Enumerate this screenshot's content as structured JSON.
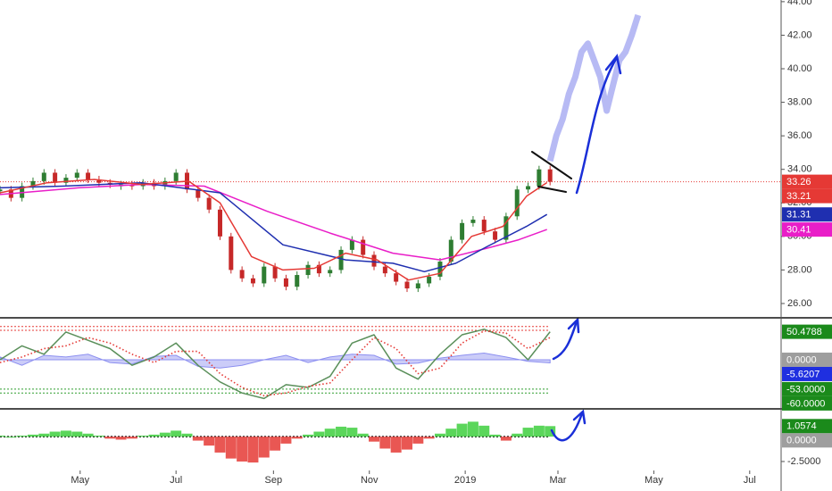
{
  "chart_data": [
    {
      "type": "line",
      "xlim": [
        10,
        507
      ],
      "ylim": [
        25.2,
        44.1
      ],
      "yticks": [
        {
          "value": 26,
          "label": "26.00"
        },
        {
          "value": 28,
          "label": "28.00"
        },
        {
          "value": 30,
          "label": "30.00"
        },
        {
          "value": 32,
          "label": "32.00"
        },
        {
          "value": 34,
          "label": "34.00"
        },
        {
          "value": 36,
          "label": "36.00"
        },
        {
          "value": 38,
          "label": "38.00"
        },
        {
          "value": 40,
          "label": "40.00"
        },
        {
          "value": 42,
          "label": "42.00"
        },
        {
          "value": 44,
          "label": "44.00"
        }
      ],
      "x": [
        10,
        17,
        24,
        31,
        38,
        45,
        52,
        59,
        66,
        73,
        80,
        87,
        94,
        101,
        108,
        115,
        122,
        129,
        136,
        143,
        150,
        157,
        164,
        171,
        178,
        185,
        192,
        199,
        206,
        213,
        220,
        227,
        234,
        241,
        248,
        255,
        262,
        269,
        276,
        283,
        290,
        297,
        304,
        311,
        318,
        325,
        332,
        339,
        346,
        353,
        360
      ],
      "up_color": "#2e7d32",
      "down_color": "#c62828",
      "price_line": 33.26,
      "price_line_color": "#e53935",
      "series": [
        {
          "style": "candles",
          "values": [
            32.8,
            32.3,
            33,
            33.3,
            33.8,
            33.2,
            33.5,
            33.8,
            33.4,
            33.2,
            33.1,
            33.1,
            33.0,
            33.2,
            33.0,
            33.3,
            33.8,
            32.8,
            32.3,
            31.6,
            30.0,
            28.0,
            27.5,
            27.2,
            28.2,
            27.5,
            27.0,
            27.7,
            28.3,
            27.8,
            28.0,
            29.2,
            29.8,
            28.9,
            28.2,
            27.8,
            27.3,
            26.9,
            27.2,
            27.6,
            28.5,
            29.8,
            30.8,
            31.0,
            30.3,
            29.8,
            31.2,
            32.8,
            33.0,
            34.0,
            33.26
          ]
        },
        {
          "style": "band",
          "color": "#9fa3f0",
          "x": [
            360,
            364,
            368,
            372,
            376,
            380,
            384,
            388,
            392,
            396,
            400,
            404,
            408,
            412,
            416
          ],
          "values": [
            34.5,
            36,
            37,
            38.5,
            39.5,
            41,
            41.5,
            40.5,
            39.5,
            37.5,
            39,
            40.5,
            41,
            42,
            43.2
          ]
        },
        {
          "style": "line",
          "color": "#e91ec8",
          "x": [
            10,
            60,
            100,
            140,
            180,
            220,
            260,
            290,
            320,
            340,
            358
          ],
          "values": [
            32.5,
            32.9,
            33.1,
            33.0,
            31.5,
            30.2,
            29.0,
            28.6,
            29.3,
            29.8,
            30.41
          ]
        },
        {
          "style": "line",
          "color": "#1f2fb0",
          "x": [
            10,
            50,
            100,
            150,
            190,
            230,
            260,
            280,
            300,
            320,
            345,
            358
          ],
          "values": [
            32.9,
            33.0,
            33.2,
            32.6,
            29.5,
            28.6,
            28.4,
            27.9,
            28.4,
            29.4,
            30.6,
            31.31
          ]
        },
        {
          "style": "line",
          "color": "#e53935",
          "x": [
            10,
            40,
            70,
            100,
            130,
            150,
            170,
            190,
            210,
            230,
            250,
            270,
            290,
            310,
            330,
            345,
            358
          ],
          "values": [
            32.6,
            33.2,
            33.4,
            33.1,
            33.3,
            32.0,
            28.8,
            28.0,
            28.1,
            29.0,
            28.6,
            27.4,
            27.8,
            30.0,
            30.6,
            32.4,
            33.21
          ]
        }
      ],
      "tags": [
        {
          "value": 33.26,
          "color": "#e53935"
        },
        {
          "value": 33.21,
          "color": "#e53935"
        },
        {
          "value": 31.31,
          "color": "#1f2fb0"
        },
        {
          "value": 30.41,
          "color": "#e91ec8"
        }
      ]
    },
    {
      "type": "line",
      "xlim": [
        10,
        507
      ],
      "ylim": [
        -87,
        74
      ],
      "x": [
        10,
        24,
        38,
        52,
        66,
        80,
        94,
        108,
        122,
        136,
        150,
        164,
        178,
        192,
        206,
        220,
        234,
        248,
        262,
        276,
        290,
        304,
        318,
        332,
        346,
        360
      ],
      "levels": [
        {
          "value": 60,
          "color": "#e53935"
        },
        {
          "value": 53,
          "color": "#e53935"
        },
        {
          "value": -53,
          "color": "#2e9e2e"
        },
        {
          "value": -60,
          "color": "#2e9e2e"
        }
      ],
      "series": [
        {
          "style": "area",
          "color": "#8c8ff0",
          "values": [
            5,
            -10,
            8,
            5,
            10,
            -5,
            -8,
            6,
            8,
            -12,
            -15,
            -10,
            0,
            8,
            -5,
            5,
            10,
            8,
            -8,
            -6,
            3,
            8,
            12,
            5,
            -3,
            -5.6207
          ]
        },
        {
          "style": "line",
          "color": "#5a8f5a",
          "values": [
            0,
            25,
            10,
            50,
            35,
            20,
            -10,
            5,
            30,
            -10,
            -40,
            -60,
            -70,
            -45,
            -50,
            -30,
            30,
            45,
            -15,
            -35,
            10,
            45,
            55,
            40,
            0,
            50.4788
          ]
        },
        {
          "style": "dotted",
          "color": "#e53935",
          "values": [
            -5,
            5,
            20,
            25,
            40,
            30,
            10,
            -5,
            15,
            15,
            -25,
            -50,
            -65,
            -60,
            -48,
            -42,
            0,
            40,
            20,
            -25,
            -15,
            30,
            52,
            48,
            20,
            40
          ]
        }
      ],
      "tags": [
        {
          "value": 50.4788,
          "color": "#1b8a1b"
        },
        {
          "value": 0,
          "label": "0.0000",
          "color": "#9e9e9e"
        },
        {
          "value": -5.6207,
          "color": "#1f2fe0"
        },
        {
          "value": -53,
          "label": "-53.0000",
          "color": "#1b8a1b"
        },
        {
          "value": -60,
          "label": "-60.0000",
          "color": "#1b8a1b"
        }
      ]
    },
    {
      "type": "bar",
      "xlim": [
        10,
        507
      ],
      "ylim": [
        -3.4,
        2.7
      ],
      "yticks": [
        {
          "value": -2.5,
          "label": "-2.5000"
        }
      ],
      "xticks": [
        {
          "value": 61,
          "label": "May"
        },
        {
          "value": 122,
          "label": "Jul"
        },
        {
          "value": 184,
          "label": "Sep"
        },
        {
          "value": 245,
          "label": "Nov"
        },
        {
          "value": 306,
          "label": "2019"
        },
        {
          "value": 365,
          "label": "Mar"
        },
        {
          "value": 426,
          "label": "May"
        },
        {
          "value": 487,
          "label": "Jul"
        }
      ],
      "pos_color": "#3ecf3e",
      "neg_color": "#e53935",
      "x": [
        10,
        17,
        24,
        31,
        38,
        45,
        52,
        59,
        66,
        73,
        80,
        87,
        94,
        101,
        108,
        115,
        122,
        129,
        136,
        143,
        150,
        157,
        164,
        171,
        178,
        185,
        192,
        199,
        206,
        213,
        220,
        227,
        234,
        241,
        248,
        255,
        262,
        269,
        276,
        283,
        290,
        297,
        304,
        311,
        318,
        325,
        332,
        339,
        346,
        353,
        360
      ],
      "values": [
        0.1,
        0.0,
        0.1,
        0.2,
        0.3,
        0.5,
        0.6,
        0.5,
        0.3,
        0.1,
        -0.2,
        -0.3,
        -0.2,
        0.1,
        0.2,
        0.4,
        0.6,
        0.3,
        -0.4,
        -0.9,
        -1.6,
        -2.2,
        -2.5,
        -2.6,
        -2.1,
        -1.4,
        -0.7,
        -0.2,
        0.2,
        0.5,
        0.8,
        1.0,
        0.9,
        0.3,
        -0.5,
        -1.2,
        -1.6,
        -1.3,
        -0.7,
        -0.2,
        0.3,
        0.8,
        1.3,
        1.5,
        1.1,
        0.2,
        -0.4,
        0.3,
        0.9,
        1.1,
        1.0574
      ],
      "tags": [
        {
          "value": 1.0574,
          "color": "#1b8a1b"
        },
        {
          "value": 0,
          "label": "0.0000",
          "color": "#9e9e9e"
        }
      ]
    }
  ]
}
